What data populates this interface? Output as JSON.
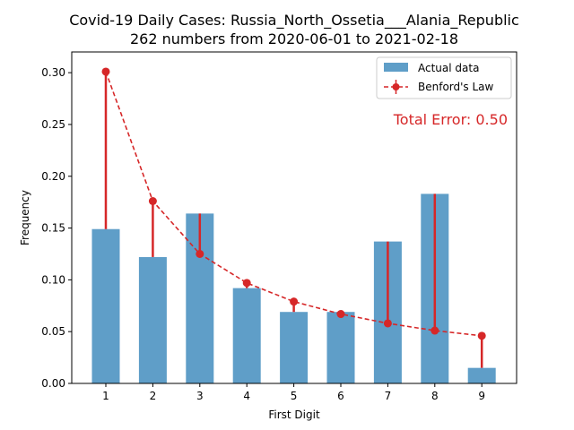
{
  "chart_data": {
    "type": "bar",
    "title": "Covid-19 Daily Cases: Russia_North_Ossetia___Alania_Republic",
    "subtitle": "262 numbers from 2020-06-01 to 2021-02-18",
    "xlabel": "First Digit",
    "ylabel": "Frequency",
    "categories": [
      "1",
      "2",
      "3",
      "4",
      "5",
      "6",
      "7",
      "8",
      "9"
    ],
    "ylim": [
      0,
      0.32
    ],
    "yticks": [
      "0.00",
      "0.05",
      "0.10",
      "0.15",
      "0.20",
      "0.25",
      "0.30"
    ],
    "grid": false,
    "legend_position": "top-right",
    "series": [
      {
        "name": "Actual data",
        "kind": "bar",
        "color": "#5f9ec8",
        "values": [
          0.149,
          0.122,
          0.164,
          0.092,
          0.069,
          0.069,
          0.137,
          0.183,
          0.015
        ]
      },
      {
        "name": "Benford's Law",
        "kind": "line",
        "color": "#d62728",
        "values": [
          0.301,
          0.176,
          0.125,
          0.097,
          0.079,
          0.067,
          0.058,
          0.051,
          0.046
        ]
      }
    ],
    "annotation": "Total Error: 0.50"
  }
}
